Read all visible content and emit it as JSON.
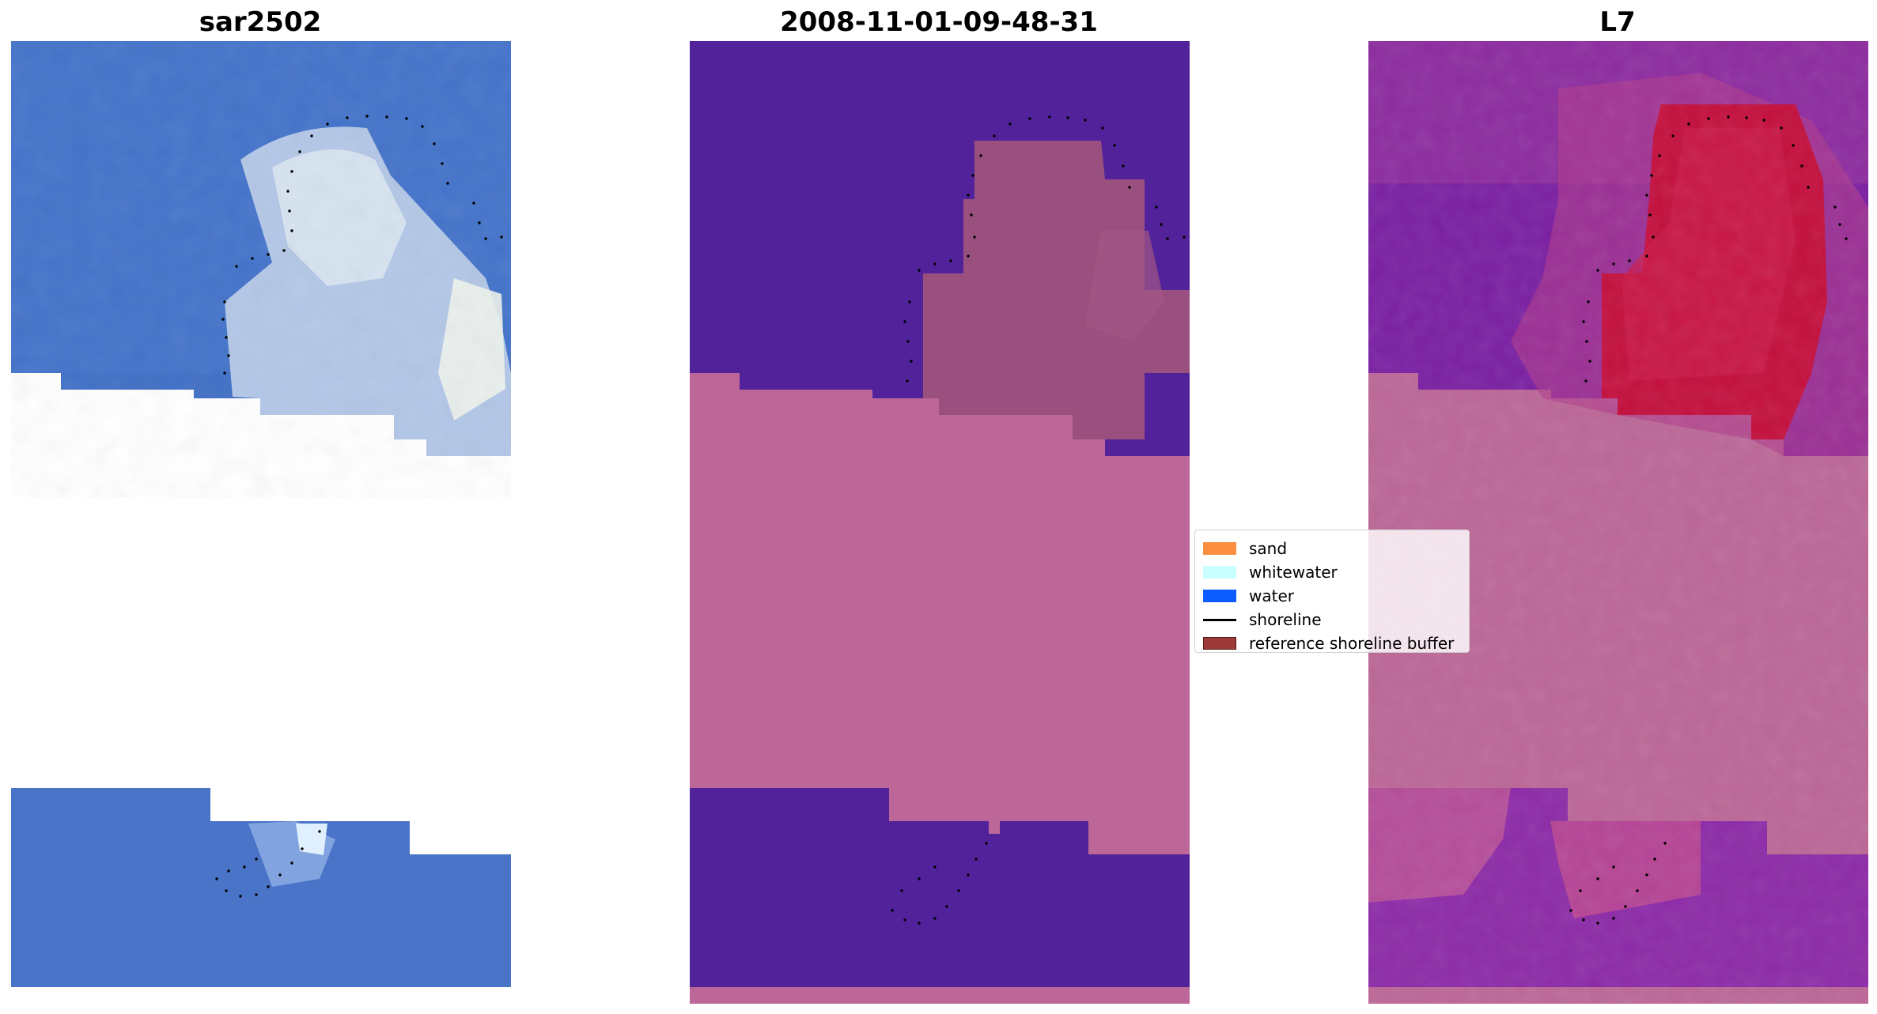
{
  "panels": {
    "rgb": {
      "title": "sar2502"
    },
    "classification": {
      "title": "2008-11-01-09-48-31"
    },
    "index": {
      "title": "L7"
    }
  },
  "legend": {
    "items": [
      {
        "label": "sand",
        "color": "#fb8f3f",
        "kind": "patch"
      },
      {
        "label": "whitewater",
        "color": "#c9ffff",
        "kind": "patch"
      },
      {
        "label": "water",
        "color": "#0d5cff",
        "kind": "patch"
      },
      {
        "label": "shoreline",
        "color": "#000000",
        "kind": "line"
      },
      {
        "label": "reference shoreline buffer",
        "color": "#9c3a3a",
        "kind": "patch"
      }
    ]
  },
  "colors": {
    "water_blue": "#3f6fc6",
    "class_water": "#52229a",
    "class_buffer": "#bc6797",
    "class_sand": "#9a507f",
    "index_purple": "#7a1fa3",
    "index_red": "#c40f3d"
  }
}
